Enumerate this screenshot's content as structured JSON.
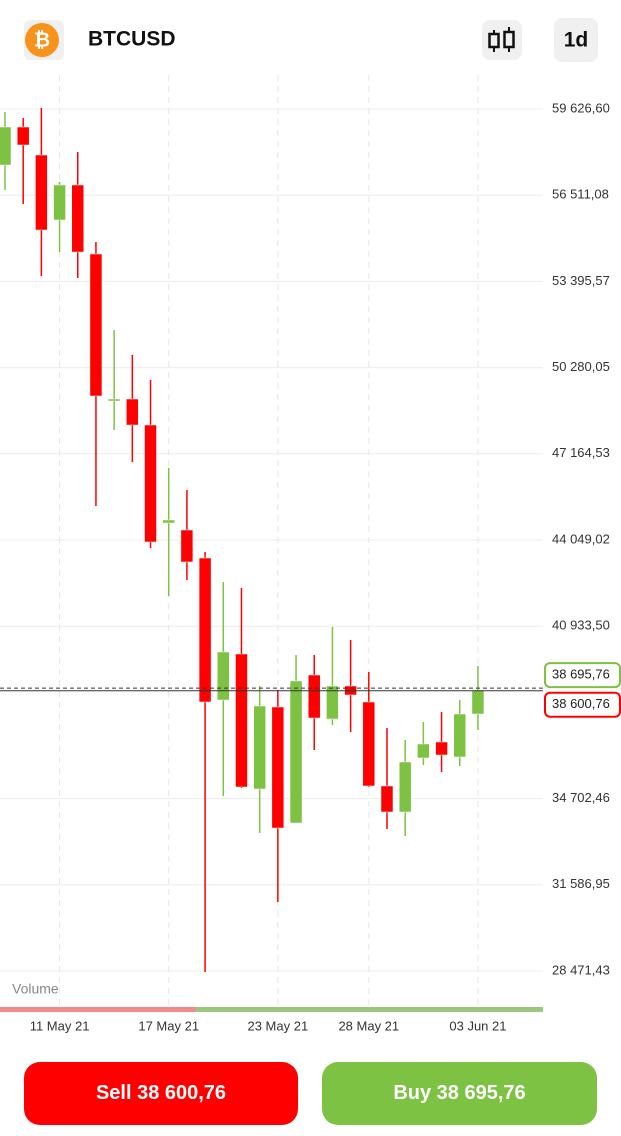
{
  "header": {
    "symbol": "BTCUSD",
    "timeframe": "1d"
  },
  "chart_data": {
    "type": "candlestick",
    "categories": [
      null,
      null,
      null,
      "11 May 21",
      null,
      null,
      null,
      null,
      null,
      "17 May 21",
      null,
      null,
      null,
      null,
      null,
      "23 May 21",
      null,
      null,
      null,
      null,
      "28 May 21",
      null,
      null,
      null,
      null,
      null,
      "03 Jun 21"
    ],
    "open": [
      57602,
      58976,
      57964,
      55615,
      56880,
      54386,
      49073,
      49145,
      48205,
      44663,
      44410,
      43398,
      38266,
      39929,
      35049,
      38013,
      33820,
      39169,
      37579,
      38772,
      38194,
      35158,
      34218,
      36170,
      36748,
      36206,
      37760
    ],
    "high": [
      59518,
      59301,
      59663,
      56988,
      58073,
      54820,
      51639,
      50736,
      49832,
      46651,
      45856,
      43615,
      42531,
      42314,
      38772,
      38627,
      39892,
      39892,
      40904,
      40435,
      39278,
      37254,
      36820,
      37471,
      37832,
      38266,
      39495
    ],
    "low": [
      56699,
      56193,
      53591,
      54458,
      53519,
      45278,
      48025,
      46868,
      43760,
      42025,
      42603,
      28435,
      34796,
      35085,
      33459,
      30965,
      33820,
      36459,
      37362,
      37109,
      35121,
      33603,
      33350,
      35917,
      35664,
      35880,
      37182
    ],
    "close": [
      58976,
      58325,
      55254,
      56880,
      54458,
      49254,
      49145,
      48205,
      43977,
      44772,
      43254,
      38194,
      40001,
      35121,
      38049,
      33639,
      38953,
      37615,
      38772,
      38447,
      35158,
      34218,
      36025,
      36676,
      36278,
      37760,
      38601
    ],
    "up_color": "#7dc242",
    "down_color": "#ff0000",
    "ylim": [
      27061,
      60856
    ],
    "yticks": [
      {
        "value": 28471.43,
        "label": "28 471,43"
      },
      {
        "value": 31586.95,
        "label": "31 586,95"
      },
      {
        "value": 34702.46,
        "label": "34 702,46"
      },
      {
        "value": 40933.5,
        "label": "40 933,50"
      },
      {
        "value": 44049.02,
        "label": "44 049,02"
      },
      {
        "value": 47164.53,
        "label": "47 164,53"
      },
      {
        "value": 50280.05,
        "label": "50 280,05"
      },
      {
        "value": 53395.57,
        "label": "53 395,57"
      },
      {
        "value": 56511.08,
        "label": "56 511,08"
      },
      {
        "value": 59626.6,
        "label": "59 626,60"
      }
    ],
    "grid": true,
    "volume_label": "Volume",
    "ask": {
      "value": 38695.76,
      "label": "38 695,76"
    },
    "bid": {
      "value": 38600.76,
      "label": "38 600,76"
    }
  },
  "buttons": {
    "sell": "Sell 38 600,76",
    "buy": "Buy 38 695,76"
  }
}
